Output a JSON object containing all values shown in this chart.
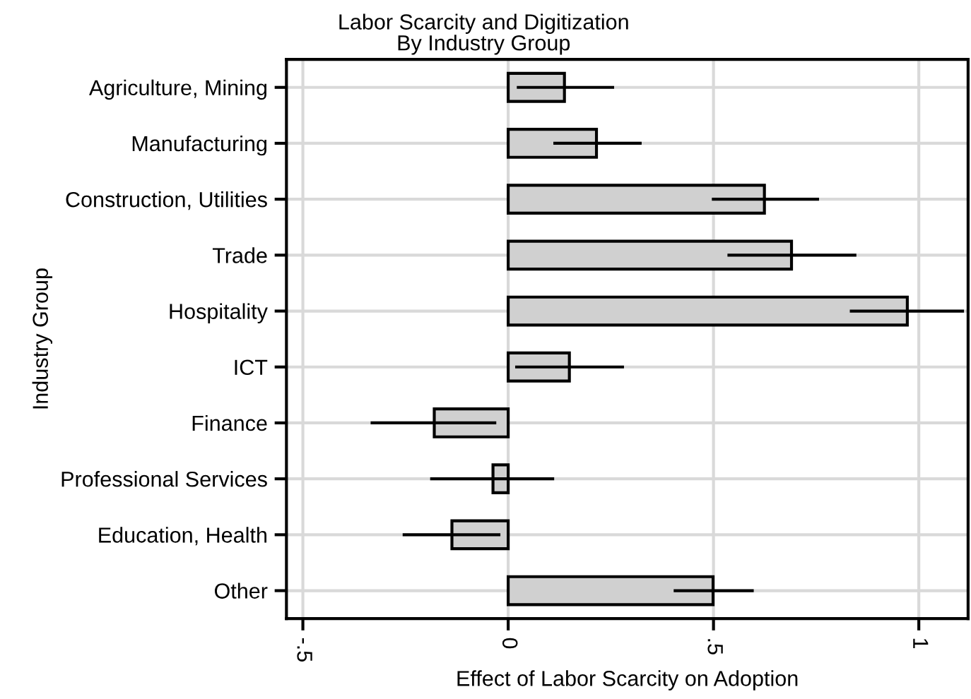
{
  "chart_data": {
    "type": "bar",
    "orientation": "horizontal",
    "title": "Labor Scarcity and Digitization",
    "subtitle": "By Industry Group",
    "xlabel": "Effect of Labor Scarcity on Adoption",
    "ylabel": "Industry Group",
    "categories": [
      "Agriculture, Mining",
      "Manufacturing",
      "Construction, Utilities",
      "Trade",
      "Hospitality",
      "ICT",
      "Finance",
      "Professional Services",
      "Education, Health",
      "Other"
    ],
    "values": [
      0.137,
      0.215,
      0.624,
      0.69,
      0.972,
      0.149,
      -0.18,
      -0.037,
      -0.137,
      0.499
    ],
    "errors": [
      [
        0.021,
        0.258
      ],
      [
        0.11,
        0.325
      ],
      [
        0.496,
        0.757
      ],
      [
        0.534,
        0.848
      ],
      [
        0.832,
        1.11
      ],
      [
        0.017,
        0.282
      ],
      [
        -0.335,
        -0.029
      ],
      [
        -0.19,
        0.112
      ],
      [
        -0.257,
        -0.019
      ],
      [
        0.403,
        0.598
      ]
    ],
    "color": "#d0d0d0",
    "xlim": [
      -0.54,
      1.12
    ],
    "xticks": [
      {
        "value": -0.5,
        "label": "-.5"
      },
      0,
      {
        "value": 0.5,
        "label": ".5"
      },
      1
    ],
    "grid": true
  }
}
